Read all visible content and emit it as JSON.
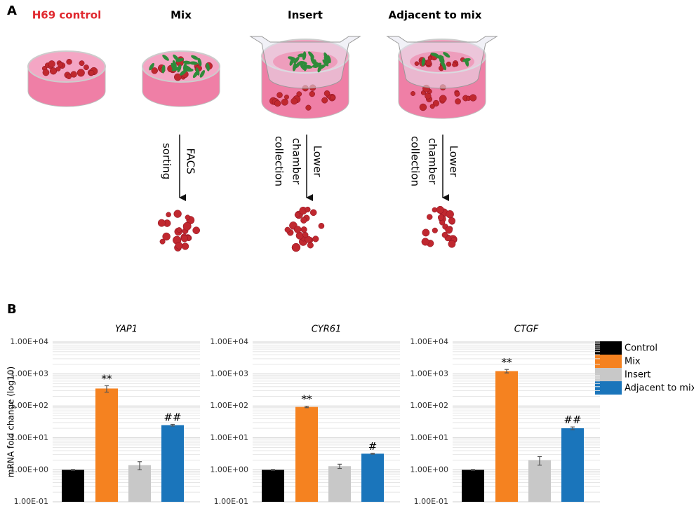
{
  "panel_a": {
    "label": "A",
    "conditions": [
      "H69 control",
      "Mix",
      "Insert",
      "Adjacent to mix"
    ],
    "steps": [
      [
        "FACS",
        "sorting"
      ],
      [
        "Lower",
        "chamber",
        "collection"
      ],
      [
        "Lower",
        "chamber",
        "collection"
      ]
    ]
  },
  "panel_b": {
    "label": "B"
  },
  "chart_data": [
    {
      "type": "bar",
      "title": "YAP1",
      "ylabel": "mRNA fold change (log10)",
      "categories": [
        null
      ],
      "log_scale": true,
      "grid": true,
      "legend": "right",
      "ylim": [
        0.1,
        10000
      ],
      "yticks": [
        {
          "value": 0.1,
          "label": "1.00E-01"
        },
        {
          "value": 1,
          "label": "1.00E+00"
        },
        {
          "value": 10,
          "label": "1.00E+01"
        },
        {
          "value": 100,
          "label": "1.00E+02"
        },
        {
          "value": 1000,
          "label": "1.00E+03"
        },
        {
          "value": 10000,
          "label": "1.00E+04"
        }
      ],
      "series": [
        {
          "name": "Control",
          "color": "#000000",
          "values": [
            1
          ],
          "errors": [
            0.03
          ]
        },
        {
          "name": "Mix",
          "color": "#f58220",
          "values": [
            350
          ],
          "errors": [
            80
          ],
          "annotations": [
            "**"
          ]
        },
        {
          "name": "Insert",
          "color": "#c8c8c8",
          "values": [
            1.4
          ],
          "errors": [
            0.4
          ]
        },
        {
          "name": "Adjacent to mix",
          "color": "#1a75bb",
          "values": [
            25
          ],
          "errors": [
            1.5
          ],
          "annotations": [
            "##"
          ]
        }
      ]
    },
    {
      "type": "bar",
      "title": "CYR61",
      "categories": [
        null
      ],
      "log_scale": true,
      "grid": true,
      "ylim": [
        0.1,
        10000
      ],
      "yticks": [
        {
          "value": 0.1,
          "label": "1.00E-01"
        },
        {
          "value": 1,
          "label": "1.00E+00"
        },
        {
          "value": 10,
          "label": "1.00E+01"
        },
        {
          "value": 100,
          "label": "1.00E+02"
        },
        {
          "value": 1000,
          "label": "1.00E+03"
        },
        {
          "value": 10000,
          "label": "1.00E+04"
        }
      ],
      "series": [
        {
          "color": "#000000",
          "values": [
            1
          ],
          "errors": [
            0.03
          ]
        },
        {
          "color": "#f58220",
          "values": [
            93
          ],
          "errors": [
            5
          ],
          "annotations": [
            "**"
          ]
        },
        {
          "color": "#c8c8c8",
          "values": [
            1.3
          ],
          "errors": [
            0.2
          ]
        },
        {
          "color": "#1a75bb",
          "values": [
            3.2
          ],
          "errors": [
            0.1
          ],
          "annotations": [
            "#"
          ]
        }
      ]
    },
    {
      "type": "bar",
      "title": "CTGF",
      "categories": [
        null
      ],
      "log_scale": true,
      "grid": true,
      "ylim": [
        0.1,
        10000
      ],
      "yticks": [
        {
          "value": 0.1,
          "label": "1.00E-01"
        },
        {
          "value": 1,
          "label": "1.00E+00"
        },
        {
          "value": 10,
          "label": "1.00E+01"
        },
        {
          "value": 100,
          "label": "1.00E+02"
        },
        {
          "value": 1000,
          "label": "1.00E+03"
        },
        {
          "value": 10000,
          "label": "1.00E+04"
        }
      ],
      "series": [
        {
          "color": "#000000",
          "values": [
            1
          ],
          "errors": [
            0.03
          ]
        },
        {
          "color": "#f58220",
          "values": [
            1230
          ],
          "errors": [
            150
          ],
          "annotations": [
            "**"
          ]
        },
        {
          "color": "#c8c8c8",
          "values": [
            2
          ],
          "errors": [
            0.6
          ]
        },
        {
          "color": "#1a75bb",
          "values": [
            20
          ],
          "errors": [
            2
          ],
          "annotations": [
            "##"
          ]
        }
      ]
    }
  ]
}
